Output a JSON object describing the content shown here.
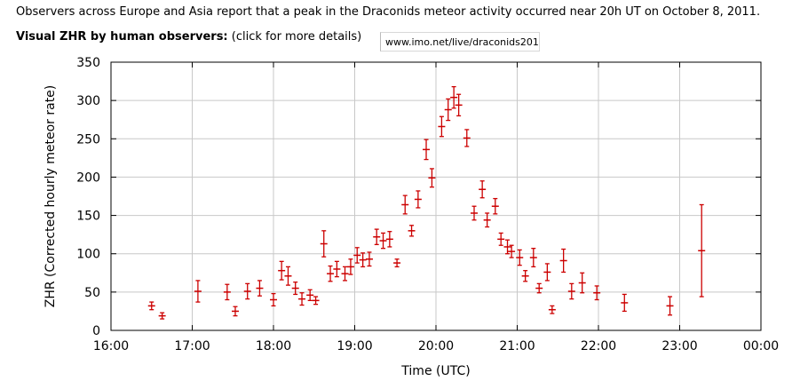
{
  "intro_text": "Observers across Europe and Asia report that a peak in the Draconids meteor activity occurred near 20h UT on October 8, 2011.",
  "subheading": {
    "bold_label": "Visual ZHR by human observers:",
    "note": "(click for more details)"
  },
  "url_field": {
    "value": "www.imo.net/live/draconids2011/"
  },
  "chart_data": {
    "type": "scatter",
    "title": "",
    "xlabel": "Time (UTC)",
    "ylabel": "ZHR (Corrected hourly meteor rate)",
    "xlim": [
      16,
      24
    ],
    "ylim": [
      0,
      350
    ],
    "x_ticks": [
      16,
      17,
      18,
      19,
      20,
      21,
      22,
      23,
      24
    ],
    "x_tick_labels": [
      "16:00",
      "17:00",
      "18:00",
      "19:00",
      "20:00",
      "21:00",
      "22:00",
      "23:00",
      "00:00"
    ],
    "y_ticks": [
      0,
      50,
      100,
      150,
      200,
      250,
      300,
      350
    ],
    "y_tick_labels": [
      "0",
      "50",
      "100",
      "150",
      "200",
      "250",
      "300",
      "350"
    ],
    "grid": true,
    "marker_color": "#cc0000",
    "series": [
      {
        "points": [
          {
            "x": 16.5,
            "y": 32,
            "err": 5
          },
          {
            "x": 16.63,
            "y": 19,
            "err": 4
          },
          {
            "x": 17.07,
            "y": 51,
            "err": 14
          },
          {
            "x": 17.43,
            "y": 50,
            "err": 10
          },
          {
            "x": 17.53,
            "y": 25,
            "err": 6
          },
          {
            "x": 17.68,
            "y": 51,
            "err": 10
          },
          {
            "x": 17.83,
            "y": 55,
            "err": 10
          },
          {
            "x": 18.0,
            "y": 40,
            "err": 8
          },
          {
            "x": 18.1,
            "y": 78,
            "err": 12
          },
          {
            "x": 18.18,
            "y": 71,
            "err": 12
          },
          {
            "x": 18.27,
            "y": 55,
            "err": 8
          },
          {
            "x": 18.35,
            "y": 41,
            "err": 8
          },
          {
            "x": 18.45,
            "y": 46,
            "err": 7
          },
          {
            "x": 18.52,
            "y": 39,
            "err": 5
          },
          {
            "x": 18.62,
            "y": 113,
            "err": 17
          },
          {
            "x": 18.7,
            "y": 74,
            "err": 10
          },
          {
            "x": 18.78,
            "y": 80,
            "err": 10
          },
          {
            "x": 18.88,
            "y": 74,
            "err": 9
          },
          {
            "x": 18.95,
            "y": 83,
            "err": 10
          },
          {
            "x": 19.03,
            "y": 98,
            "err": 10
          },
          {
            "x": 19.1,
            "y": 92,
            "err": 9
          },
          {
            "x": 19.18,
            "y": 93,
            "err": 9
          },
          {
            "x": 19.27,
            "y": 122,
            "err": 10
          },
          {
            "x": 19.35,
            "y": 117,
            "err": 10
          },
          {
            "x": 19.43,
            "y": 119,
            "err": 10
          },
          {
            "x": 19.52,
            "y": 88,
            "err": 5
          },
          {
            "x": 19.62,
            "y": 164,
            "err": 12
          },
          {
            "x": 19.7,
            "y": 130,
            "err": 7
          },
          {
            "x": 19.78,
            "y": 171,
            "err": 11
          },
          {
            "x": 19.88,
            "y": 236,
            "err": 13
          },
          {
            "x": 19.95,
            "y": 199,
            "err": 12
          },
          {
            "x": 20.07,
            "y": 266,
            "err": 13
          },
          {
            "x": 20.15,
            "y": 288,
            "err": 14
          },
          {
            "x": 20.22,
            "y": 304,
            "err": 14
          },
          {
            "x": 20.28,
            "y": 294,
            "err": 14
          },
          {
            "x": 20.38,
            "y": 251,
            "err": 11
          },
          {
            "x": 20.47,
            "y": 153,
            "err": 9
          },
          {
            "x": 20.57,
            "y": 184,
            "err": 11
          },
          {
            "x": 20.63,
            "y": 144,
            "err": 9
          },
          {
            "x": 20.73,
            "y": 162,
            "err": 10
          },
          {
            "x": 20.8,
            "y": 119,
            "err": 8
          },
          {
            "x": 20.88,
            "y": 109,
            "err": 9
          },
          {
            "x": 20.93,
            "y": 103,
            "err": 8
          },
          {
            "x": 21.03,
            "y": 95,
            "err": 10
          },
          {
            "x": 21.1,
            "y": 71,
            "err": 7
          },
          {
            "x": 21.2,
            "y": 95,
            "err": 12
          },
          {
            "x": 21.27,
            "y": 55,
            "err": 6
          },
          {
            "x": 21.37,
            "y": 76,
            "err": 11
          },
          {
            "x": 21.43,
            "y": 27,
            "err": 5
          },
          {
            "x": 21.57,
            "y": 91,
            "err": 15
          },
          {
            "x": 21.67,
            "y": 51,
            "err": 10
          },
          {
            "x": 21.8,
            "y": 62,
            "err": 13
          },
          {
            "x": 21.98,
            "y": 49,
            "err": 9
          },
          {
            "x": 22.32,
            "y": 36,
            "err": 11
          },
          {
            "x": 22.88,
            "y": 32,
            "err": 12
          },
          {
            "x": 23.27,
            "y": 104,
            "err": 60
          }
        ]
      }
    ]
  }
}
